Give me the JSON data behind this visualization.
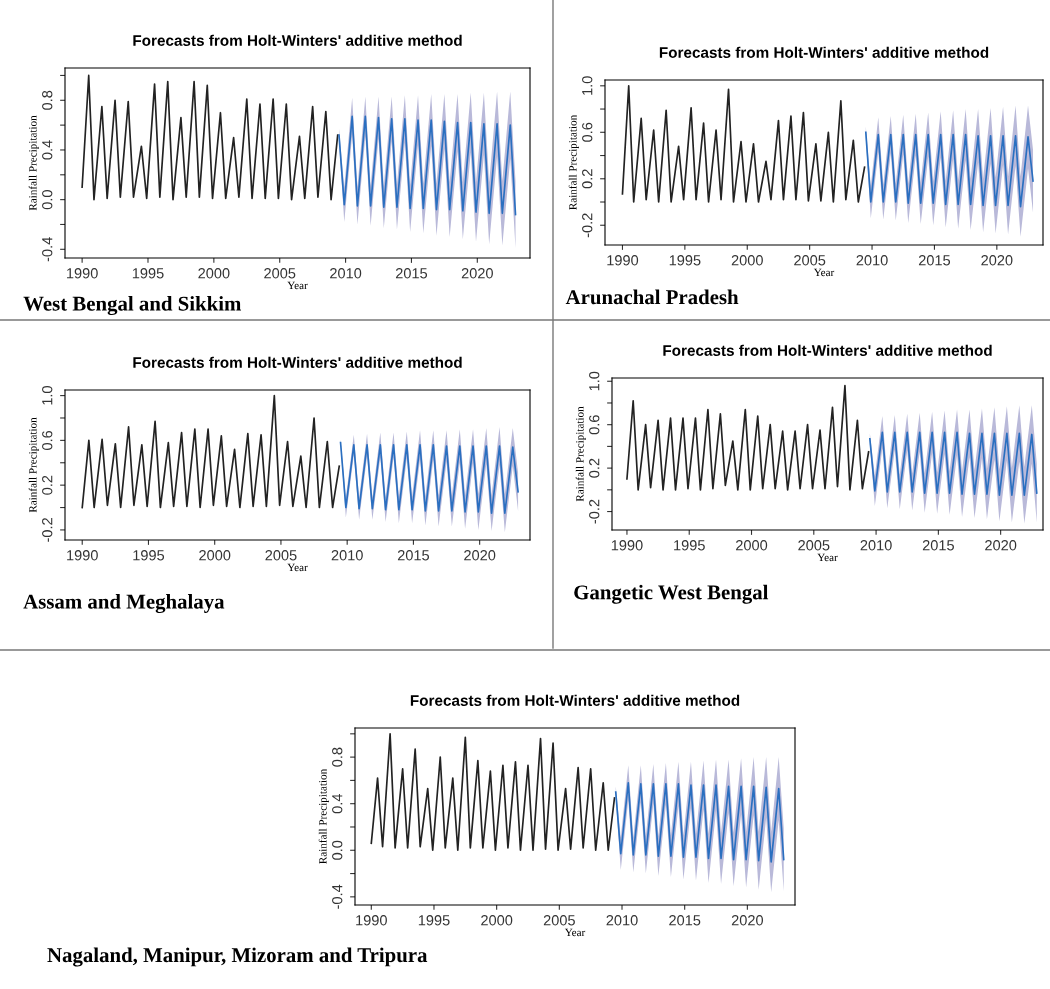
{
  "chart_data": [
    {
      "type": "line",
      "title": "Forecasts from Holt-Winters' additive method",
      "xlabel": "Year",
      "ylabel": "Rainfall Precipitation",
      "annotations": [
        "West Bengal and Sikkim"
      ],
      "xlim": [
        1988.7,
        2024.0
      ],
      "ylim": [
        -0.47,
        1.06
      ],
      "xticks": [
        1990,
        1995,
        2000,
        2005,
        2010,
        2015,
        2020
      ],
      "yticks": [
        {
          "value": -0.4,
          "label": "-0.4"
        },
        {
          "value": -0.2,
          "label": null
        },
        {
          "value": 0,
          "label": "0.0"
        },
        {
          "value": 0.2,
          "label": null
        },
        {
          "value": 0.4,
          "label": "0.4"
        },
        {
          "value": 0.6,
          "label": null
        },
        {
          "value": 0.8,
          "label": "0.8"
        },
        {
          "value": 1.0,
          "label": null
        }
      ],
      "series": [
        {
          "color": "#222222",
          "x": [
            1990.0,
            1990.5,
            1990.9,
            1991.5,
            1991.9,
            1992.5,
            1992.9,
            1993.5,
            1993.9,
            1994.5,
            1994.9,
            1995.5,
            1995.9,
            1996.5,
            1996.9,
            1997.5,
            1997.9,
            1998.5,
            1998.9,
            1999.5,
            1999.9,
            2000.5,
            2000.9,
            2001.5,
            2001.9,
            2002.5,
            2002.9,
            2003.5,
            2003.9,
            2004.5,
            2004.9,
            2005.5,
            2005.9,
            2006.5,
            2006.9,
            2007.5,
            2007.9,
            2008.5,
            2008.9,
            2009.4
          ],
          "values": [
            0.1,
            1.0,
            0.0,
            0.75,
            0.01,
            0.8,
            0.02,
            0.79,
            0.02,
            0.43,
            0.01,
            0.93,
            0.02,
            0.95,
            0.0,
            0.66,
            0.02,
            0.95,
            0.02,
            0.92,
            0.01,
            0.7,
            0.01,
            0.5,
            0.02,
            0.81,
            0.01,
            0.77,
            0.01,
            0.81,
            0.01,
            0.77,
            0.0,
            0.51,
            0.01,
            0.75,
            0.02,
            0.71,
            0.0,
            0.52
          ]
        },
        {
          "color": "#2a6fc0",
          "x": [
            2009.5,
            2009.9,
            2010.5,
            2010.9,
            2011.5,
            2011.9,
            2012.5,
            2012.9,
            2013.5,
            2013.9,
            2014.5,
            2014.9,
            2015.5,
            2015.9,
            2016.5,
            2016.9,
            2017.5,
            2017.9,
            2018.5,
            2018.9,
            2019.5,
            2019.9,
            2020.5,
            2020.9,
            2021.5,
            2021.9,
            2022.5,
            2022.9
          ],
          "values": [
            0.52,
            -0.04,
            0.67,
            -0.05,
            0.67,
            -0.05,
            0.66,
            -0.06,
            0.65,
            -0.06,
            0.65,
            -0.07,
            0.64,
            -0.07,
            0.64,
            -0.08,
            0.63,
            -0.08,
            0.62,
            -0.09,
            0.62,
            -0.1,
            0.61,
            -0.11,
            0.61,
            -0.11,
            0.6,
            -0.12
          ],
          "upper": [
            0.57,
            0.1,
            0.82,
            0.1,
            0.83,
            0.11,
            0.83,
            0.11,
            0.83,
            0.12,
            0.84,
            0.12,
            0.84,
            0.13,
            0.85,
            0.13,
            0.85,
            0.14,
            0.85,
            0.14,
            0.86,
            0.14,
            0.86,
            0.14,
            0.87,
            0.15,
            0.87,
            0.15
          ],
          "lower": [
            0.47,
            -0.18,
            0.52,
            -0.2,
            0.51,
            -0.21,
            0.49,
            -0.23,
            0.47,
            -0.24,
            0.46,
            -0.26,
            0.44,
            -0.27,
            0.43,
            -0.29,
            0.41,
            -0.3,
            0.39,
            -0.32,
            0.38,
            -0.34,
            0.36,
            -0.36,
            0.35,
            -0.37,
            0.33,
            -0.39
          ]
        }
      ]
    },
    {
      "type": "line",
      "title": "Forecasts from Holt-Winters' additive method",
      "xlabel": "Year",
      "ylabel": "Rainfall Precipitation",
      "annotations": [
        "Arunachal Pradesh"
      ],
      "xlim": [
        1988.6,
        2023.7
      ],
      "ylim": [
        -0.37,
        1.05
      ],
      "xticks": [
        1990,
        1995,
        2000,
        2005,
        2010,
        2015,
        2020
      ],
      "yticks": [
        {
          "value": -0.2,
          "label": "-0.2"
        },
        {
          "value": 0,
          "label": null
        },
        {
          "value": 0.2,
          "label": "0.2"
        },
        {
          "value": 0.4,
          "label": null
        },
        {
          "value": 0.6,
          "label": "0.6"
        },
        {
          "value": 0.8,
          "label": null
        },
        {
          "value": 1.0,
          "label": "1.0"
        }
      ],
      "series": [
        {
          "color": "#222222",
          "x": [
            1990.0,
            1990.5,
            1990.9,
            1991.5,
            1991.9,
            1992.5,
            1992.9,
            1993.5,
            1993.9,
            1994.5,
            1994.9,
            1995.5,
            1995.9,
            1996.5,
            1996.9,
            1997.5,
            1997.9,
            1998.5,
            1998.9,
            1999.5,
            1999.9,
            2000.5,
            2000.9,
            2001.5,
            2001.9,
            2002.5,
            2002.9,
            2003.5,
            2003.9,
            2004.5,
            2004.9,
            2005.5,
            2005.9,
            2006.5,
            2006.9,
            2007.5,
            2007.9,
            2008.5,
            2008.9,
            2009.4
          ],
          "values": [
            0.07,
            1.0,
            0.0,
            0.72,
            0.02,
            0.62,
            0.0,
            0.79,
            0.0,
            0.48,
            0.02,
            0.81,
            0.02,
            0.68,
            0.0,
            0.62,
            0.02,
            0.97,
            0.0,
            0.52,
            0.0,
            0.5,
            0.0,
            0.35,
            0.02,
            0.7,
            0.02,
            0.74,
            0.02,
            0.77,
            0.01,
            0.5,
            0.01,
            0.6,
            0.0,
            0.87,
            0.02,
            0.53,
            0.0,
            0.3
          ]
        },
        {
          "color": "#2a6fc0",
          "x": [
            2009.5,
            2009.9,
            2010.5,
            2010.9,
            2011.5,
            2011.9,
            2012.5,
            2012.9,
            2013.5,
            2013.9,
            2014.5,
            2014.9,
            2015.5,
            2015.9,
            2016.5,
            2016.9,
            2017.5,
            2017.9,
            2018.5,
            2018.9,
            2019.5,
            2019.9,
            2020.5,
            2020.9,
            2021.5,
            2021.9,
            2022.5,
            2022.9
          ],
          "values": [
            0.6,
            0.0,
            0.58,
            0.0,
            0.58,
            0.0,
            0.58,
            -0.01,
            0.58,
            -0.01,
            0.58,
            -0.01,
            0.58,
            -0.02,
            0.58,
            -0.02,
            0.58,
            -0.02,
            0.57,
            -0.03,
            0.57,
            -0.03,
            0.57,
            -0.03,
            0.57,
            -0.04,
            0.56,
            0.18
          ],
          "upper": [
            0.65,
            0.14,
            0.73,
            0.15,
            0.74,
            0.16,
            0.75,
            0.16,
            0.76,
            0.17,
            0.77,
            0.18,
            0.78,
            0.18,
            0.79,
            0.19,
            0.8,
            0.2,
            0.8,
            0.2,
            0.81,
            0.21,
            0.82,
            0.22,
            0.83,
            0.22,
            0.83,
            0.45
          ],
          "lower": [
            0.55,
            -0.14,
            0.43,
            -0.15,
            0.42,
            -0.16,
            0.41,
            -0.18,
            0.4,
            -0.19,
            0.39,
            -0.2,
            0.38,
            -0.22,
            0.37,
            -0.23,
            0.36,
            -0.24,
            0.34,
            -0.26,
            0.33,
            -0.27,
            0.32,
            -0.28,
            0.31,
            -0.3,
            0.29,
            -0.09
          ]
        }
      ]
    },
    {
      "type": "line",
      "title": "Forecasts from Holt-Winters' additive method",
      "xlabel": "Year",
      "ylabel": "Rainfall Precipitation",
      "annotations": [
        "Assam and Meghalaya"
      ],
      "xlim": [
        1988.7,
        2023.8
      ],
      "ylim": [
        -0.29,
        1.05
      ],
      "xticks": [
        1990,
        1995,
        2000,
        2005,
        2010,
        2015,
        2020
      ],
      "yticks": [
        {
          "value": -0.2,
          "label": "-0.2"
        },
        {
          "value": 0,
          "label": null
        },
        {
          "value": 0.2,
          "label": "0.2"
        },
        {
          "value": 0.4,
          "label": null
        },
        {
          "value": 0.6,
          "label": "0.6"
        },
        {
          "value": 0.8,
          "label": null
        },
        {
          "value": 1.0,
          "label": "1.0"
        }
      ],
      "series": [
        {
          "color": "#222222",
          "x": [
            1990.0,
            1990.5,
            1990.9,
            1991.5,
            1991.9,
            1992.5,
            1992.9,
            1993.5,
            1993.9,
            1994.5,
            1994.9,
            1995.5,
            1995.9,
            1996.5,
            1996.9,
            1997.5,
            1997.9,
            1998.5,
            1998.9,
            1999.5,
            1999.9,
            2000.5,
            2000.9,
            2001.5,
            2001.9,
            2002.5,
            2002.9,
            2003.5,
            2003.9,
            2004.5,
            2004.9,
            2005.5,
            2005.9,
            2006.5,
            2006.9,
            2007.5,
            2007.9,
            2008.5,
            2008.9,
            2009.4
          ],
          "values": [
            0.0,
            0.6,
            0.0,
            0.61,
            0.02,
            0.57,
            0.0,
            0.72,
            0.02,
            0.56,
            0.01,
            0.77,
            0.0,
            0.58,
            0.01,
            0.67,
            0.01,
            0.7,
            0.0,
            0.7,
            0.02,
            0.64,
            0.01,
            0.52,
            0.0,
            0.66,
            0.01,
            0.65,
            0.01,
            1.0,
            0.02,
            0.59,
            0.01,
            0.46,
            0.0,
            0.8,
            0.0,
            0.59,
            0.0,
            0.37
          ]
        },
        {
          "color": "#2a6fc0",
          "x": [
            2009.5,
            2009.9,
            2010.5,
            2010.9,
            2011.5,
            2011.9,
            2012.5,
            2012.9,
            2013.5,
            2013.9,
            2014.5,
            2014.9,
            2015.5,
            2015.9,
            2016.5,
            2016.9,
            2017.5,
            2017.9,
            2018.5,
            2018.9,
            2019.5,
            2019.9,
            2020.5,
            2020.9,
            2021.5,
            2021.9,
            2022.5,
            2022.9
          ],
          "values": [
            0.58,
            0.0,
            0.56,
            -0.01,
            0.56,
            -0.01,
            0.56,
            -0.02,
            0.56,
            -0.02,
            0.56,
            -0.02,
            0.56,
            -0.03,
            0.56,
            -0.03,
            0.55,
            -0.03,
            0.55,
            -0.04,
            0.55,
            -0.04,
            0.55,
            -0.05,
            0.55,
            -0.05,
            0.54,
            0.14
          ],
          "upper": [
            0.61,
            0.09,
            0.65,
            0.09,
            0.66,
            0.09,
            0.67,
            0.09,
            0.67,
            0.1,
            0.68,
            0.1,
            0.69,
            0.1,
            0.69,
            0.11,
            0.69,
            0.11,
            0.7,
            0.11,
            0.7,
            0.12,
            0.71,
            0.11,
            0.72,
            0.12,
            0.71,
            0.31
          ],
          "lower": [
            0.55,
            -0.09,
            0.47,
            -0.11,
            0.46,
            -0.11,
            0.45,
            -0.13,
            0.45,
            -0.14,
            0.44,
            -0.14,
            0.43,
            -0.16,
            0.43,
            -0.17,
            0.41,
            -0.17,
            0.4,
            -0.19,
            0.4,
            -0.2,
            0.39,
            -0.21,
            0.38,
            -0.22,
            0.37,
            -0.03
          ]
        }
      ]
    },
    {
      "type": "line",
      "title": "Forecasts from Holt-Winters' additive method",
      "xlabel": "Year",
      "ylabel": "Rainfall Precipitation",
      "annotations": [
        "Gangetic West Bengal"
      ],
      "xlim": [
        1988.8,
        2023.4
      ],
      "ylim": [
        -0.37,
        1.03
      ],
      "xticks": [
        1990,
        1995,
        2000,
        2005,
        2010,
        2015,
        2020
      ],
      "yticks": [
        {
          "value": -0.2,
          "label": "-0.2"
        },
        {
          "value": 0,
          "label": null
        },
        {
          "value": 0.2,
          "label": "0.2"
        },
        {
          "value": 0.4,
          "label": null
        },
        {
          "value": 0.6,
          "label": "0.6"
        },
        {
          "value": 0.8,
          "label": null
        },
        {
          "value": 1.0,
          "label": "1.0"
        }
      ],
      "series": [
        {
          "color": "#222222",
          "x": [
            1990.0,
            1990.5,
            1990.9,
            1991.5,
            1991.9,
            1992.5,
            1992.9,
            1993.5,
            1993.9,
            1994.5,
            1994.9,
            1995.5,
            1995.9,
            1996.5,
            1996.9,
            1997.5,
            1997.9,
            1998.5,
            1998.9,
            1999.5,
            1999.9,
            2000.5,
            2000.9,
            2001.5,
            2001.9,
            2002.5,
            2002.9,
            2003.5,
            2003.9,
            2004.5,
            2004.9,
            2005.5,
            2005.9,
            2006.5,
            2006.9,
            2007.5,
            2007.9,
            2008.5,
            2008.9,
            2009.4
          ],
          "values": [
            0.1,
            0.82,
            0.0,
            0.6,
            0.02,
            0.64,
            0.0,
            0.66,
            0.0,
            0.66,
            0.01,
            0.66,
            0.0,
            0.74,
            0.01,
            0.7,
            0.04,
            0.45,
            0.0,
            0.74,
            0.0,
            0.68,
            0.01,
            0.6,
            0.01,
            0.54,
            0.0,
            0.54,
            0.01,
            0.6,
            0.01,
            0.55,
            0.01,
            0.76,
            0.03,
            0.96,
            0.0,
            0.64,
            0.01,
            0.35
          ]
        },
        {
          "color": "#2a6fc0",
          "x": [
            2009.5,
            2009.9,
            2010.5,
            2010.9,
            2011.5,
            2011.9,
            2012.5,
            2012.9,
            2013.5,
            2013.9,
            2014.5,
            2014.9,
            2015.5,
            2015.9,
            2016.5,
            2016.9,
            2017.5,
            2017.9,
            2018.5,
            2018.9,
            2019.5,
            2019.9,
            2020.5,
            2020.9,
            2021.5,
            2021.9,
            2022.5,
            2022.9
          ],
          "values": [
            0.47,
            -0.01,
            0.53,
            -0.02,
            0.53,
            -0.02,
            0.53,
            -0.02,
            0.53,
            -0.03,
            0.53,
            -0.03,
            0.53,
            -0.03,
            0.53,
            -0.04,
            0.52,
            -0.04,
            0.52,
            -0.04,
            0.52,
            -0.05,
            0.52,
            -0.05,
            0.52,
            -0.05,
            0.51,
            -0.03
          ],
          "upper": [
            0.52,
            0.13,
            0.68,
            0.13,
            0.69,
            0.14,
            0.7,
            0.15,
            0.71,
            0.15,
            0.72,
            0.16,
            0.73,
            0.17,
            0.74,
            0.17,
            0.74,
            0.18,
            0.75,
            0.19,
            0.76,
            0.19,
            0.77,
            0.2,
            0.78,
            0.21,
            0.78,
            0.24
          ],
          "lower": [
            0.42,
            -0.15,
            0.38,
            -0.17,
            0.37,
            -0.18,
            0.36,
            -0.19,
            0.35,
            -0.21,
            0.34,
            -0.22,
            0.33,
            -0.23,
            0.32,
            -0.25,
            0.3,
            -0.26,
            0.29,
            -0.27,
            0.28,
            -0.29,
            0.27,
            -0.3,
            0.26,
            -0.31,
            0.24,
            -0.3
          ]
        }
      ]
    },
    {
      "type": "line",
      "title": "Forecasts from Holt-Winters' additive method",
      "xlabel": "Year",
      "ylabel": "Rainfall Precipitation",
      "annotations": [
        "Nagaland, Manipur, Mizoram and Tripura"
      ],
      "xlim": [
        1988.7,
        2023.8
      ],
      "ylim": [
        -0.47,
        1.05
      ],
      "xticks": [
        1990,
        1995,
        2000,
        2005,
        2010,
        2015,
        2020
      ],
      "yticks": [
        {
          "value": -0.4,
          "label": "-0.4"
        },
        {
          "value": -0.2,
          "label": null
        },
        {
          "value": 0,
          "label": "0.0"
        },
        {
          "value": 0.2,
          "label": null
        },
        {
          "value": 0.4,
          "label": "0.4"
        },
        {
          "value": 0.6,
          "label": null
        },
        {
          "value": 0.8,
          "label": "0.8"
        },
        {
          "value": 1.0,
          "label": null
        }
      ],
      "series": [
        {
          "color": "#222222",
          "x": [
            1990.0,
            1990.5,
            1990.9,
            1991.5,
            1991.9,
            1992.5,
            1992.9,
            1993.5,
            1993.9,
            1994.5,
            1994.9,
            1995.5,
            1995.9,
            1996.5,
            1996.9,
            1997.5,
            1997.9,
            1998.5,
            1998.9,
            1999.5,
            1999.9,
            2000.5,
            2000.9,
            2001.5,
            2001.9,
            2002.5,
            2002.9,
            2003.5,
            2003.9,
            2004.5,
            2004.9,
            2005.5,
            2005.9,
            2006.5,
            2006.9,
            2007.5,
            2007.9,
            2008.5,
            2008.9,
            2009.4
          ],
          "values": [
            0.06,
            0.62,
            0.03,
            1.0,
            0.02,
            0.7,
            0.02,
            0.87,
            0.03,
            0.53,
            0.0,
            0.8,
            0.02,
            0.62,
            0.0,
            0.97,
            0.02,
            0.77,
            0.02,
            0.68,
            0.0,
            0.73,
            0.02,
            0.76,
            0.0,
            0.73,
            0.0,
            0.96,
            0.01,
            0.92,
            0.0,
            0.53,
            0.01,
            0.71,
            0.02,
            0.7,
            0.0,
            0.58,
            0.0,
            0.45
          ]
        },
        {
          "color": "#2a6fc0",
          "x": [
            2009.5,
            2009.9,
            2010.5,
            2010.9,
            2011.5,
            2011.9,
            2012.5,
            2012.9,
            2013.5,
            2013.9,
            2014.5,
            2014.9,
            2015.5,
            2015.9,
            2016.5,
            2016.9,
            2017.5,
            2017.9,
            2018.5,
            2018.9,
            2019.5,
            2019.9,
            2020.5,
            2020.9,
            2021.5,
            2021.9,
            2022.5,
            2022.9
          ],
          "values": [
            0.5,
            -0.03,
            0.58,
            -0.04,
            0.57,
            -0.04,
            0.57,
            -0.05,
            0.57,
            -0.05,
            0.57,
            -0.06,
            0.56,
            -0.06,
            0.56,
            -0.07,
            0.56,
            -0.07,
            0.55,
            -0.08,
            0.55,
            -0.08,
            0.55,
            -0.09,
            0.54,
            -0.1,
            0.53,
            -0.08
          ],
          "upper": [
            0.55,
            0.11,
            0.73,
            0.11,
            0.73,
            0.12,
            0.74,
            0.12,
            0.75,
            0.13,
            0.76,
            0.13,
            0.76,
            0.14,
            0.77,
            0.14,
            0.78,
            0.15,
            0.78,
            0.15,
            0.79,
            0.16,
            0.8,
            0.16,
            0.8,
            0.16,
            0.8,
            0.19
          ],
          "lower": [
            0.45,
            -0.17,
            0.43,
            -0.19,
            0.41,
            -0.2,
            0.4,
            -0.22,
            0.39,
            -0.23,
            0.38,
            -0.25,
            0.36,
            -0.26,
            0.35,
            -0.28,
            0.34,
            -0.29,
            0.32,
            -0.31,
            0.31,
            -0.32,
            0.3,
            -0.34,
            0.28,
            -0.36,
            0.26,
            -0.35
          ]
        }
      ]
    }
  ]
}
